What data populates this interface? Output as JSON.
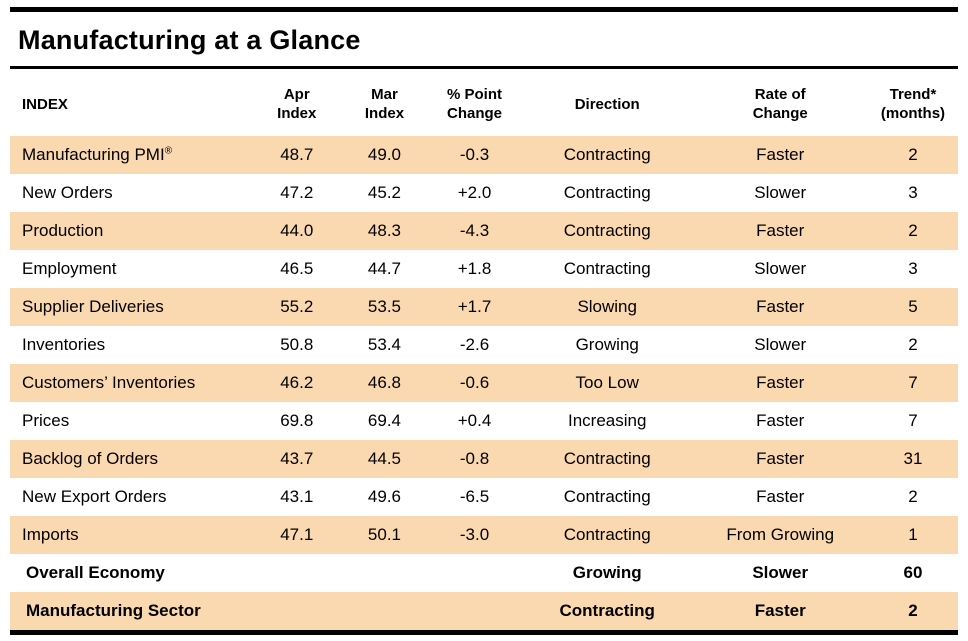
{
  "title": "Manufacturing at a Glance",
  "colors": {
    "row_shade": "#fad8b0",
    "rule": "#000000",
    "text": "#000000"
  },
  "table": {
    "headers": [
      {
        "id": "index",
        "lines": [
          "INDEX"
        ]
      },
      {
        "id": "apr-index",
        "lines": [
          "Apr",
          "Index"
        ]
      },
      {
        "id": "mar-index",
        "lines": [
          "Mar",
          "Index"
        ]
      },
      {
        "id": "point-change",
        "lines": [
          "% Point",
          "Change"
        ]
      },
      {
        "id": "direction",
        "lines": [
          "Direction"
        ]
      },
      {
        "id": "rate-of-change",
        "lines": [
          "Rate of",
          "Change"
        ]
      },
      {
        "id": "trend",
        "lines": [
          "Trend*",
          "(months)"
        ]
      }
    ],
    "rows": [
      {
        "index": "Manufacturing PMI®",
        "apr": "48.7",
        "mar": "49.0",
        "change": "-0.3",
        "direction": "Contracting",
        "rate": "Faster",
        "trend": "2",
        "emphasis": false
      },
      {
        "index": "New Orders",
        "apr": "47.2",
        "mar": "45.2",
        "change": "+2.0",
        "direction": "Contracting",
        "rate": "Slower",
        "trend": "3",
        "emphasis": false
      },
      {
        "index": "Production",
        "apr": "44.0",
        "mar": "48.3",
        "change": "-4.3",
        "direction": "Contracting",
        "rate": "Faster",
        "trend": "2",
        "emphasis": false
      },
      {
        "index": "Employment",
        "apr": "46.5",
        "mar": "44.7",
        "change": "+1.8",
        "direction": "Contracting",
        "rate": "Slower",
        "trend": "3",
        "emphasis": false
      },
      {
        "index": "Supplier Deliveries",
        "apr": "55.2",
        "mar": "53.5",
        "change": "+1.7",
        "direction": "Slowing",
        "rate": "Faster",
        "trend": "5",
        "emphasis": false
      },
      {
        "index": "Inventories",
        "apr": "50.8",
        "mar": "53.4",
        "change": "-2.6",
        "direction": "Growing",
        "rate": "Slower",
        "trend": "2",
        "emphasis": false
      },
      {
        "index": "Customers’ Inventories",
        "apr": "46.2",
        "mar": "46.8",
        "change": "-0.6",
        "direction": "Too Low",
        "rate": "Faster",
        "trend": "7",
        "emphasis": false
      },
      {
        "index": "Prices",
        "apr": "69.8",
        "mar": "69.4",
        "change": "+0.4",
        "direction": "Increasing",
        "rate": "Faster",
        "trend": "7",
        "emphasis": false
      },
      {
        "index": "Backlog of Orders",
        "apr": "43.7",
        "mar": "44.5",
        "change": "-0.8",
        "direction": "Contracting",
        "rate": "Faster",
        "trend": "31",
        "emphasis": false
      },
      {
        "index": "New Export Orders",
        "apr": "43.1",
        "mar": "49.6",
        "change": "-6.5",
        "direction": "Contracting",
        "rate": "Faster",
        "trend": "2",
        "emphasis": false
      },
      {
        "index": "Imports",
        "apr": "47.1",
        "mar": "50.1",
        "change": "-3.0",
        "direction": "Contracting",
        "rate": "From Growing",
        "trend": "1",
        "emphasis": false
      },
      {
        "index": "Overall Economy",
        "apr": "",
        "mar": "",
        "change": "",
        "direction": "Growing",
        "rate": "Slower",
        "trend": "60",
        "emphasis": true
      },
      {
        "index": "Manufacturing Sector",
        "apr": "",
        "mar": "",
        "change": "",
        "direction": "Contracting",
        "rate": "Faster",
        "trend": "2",
        "emphasis": true
      }
    ]
  }
}
